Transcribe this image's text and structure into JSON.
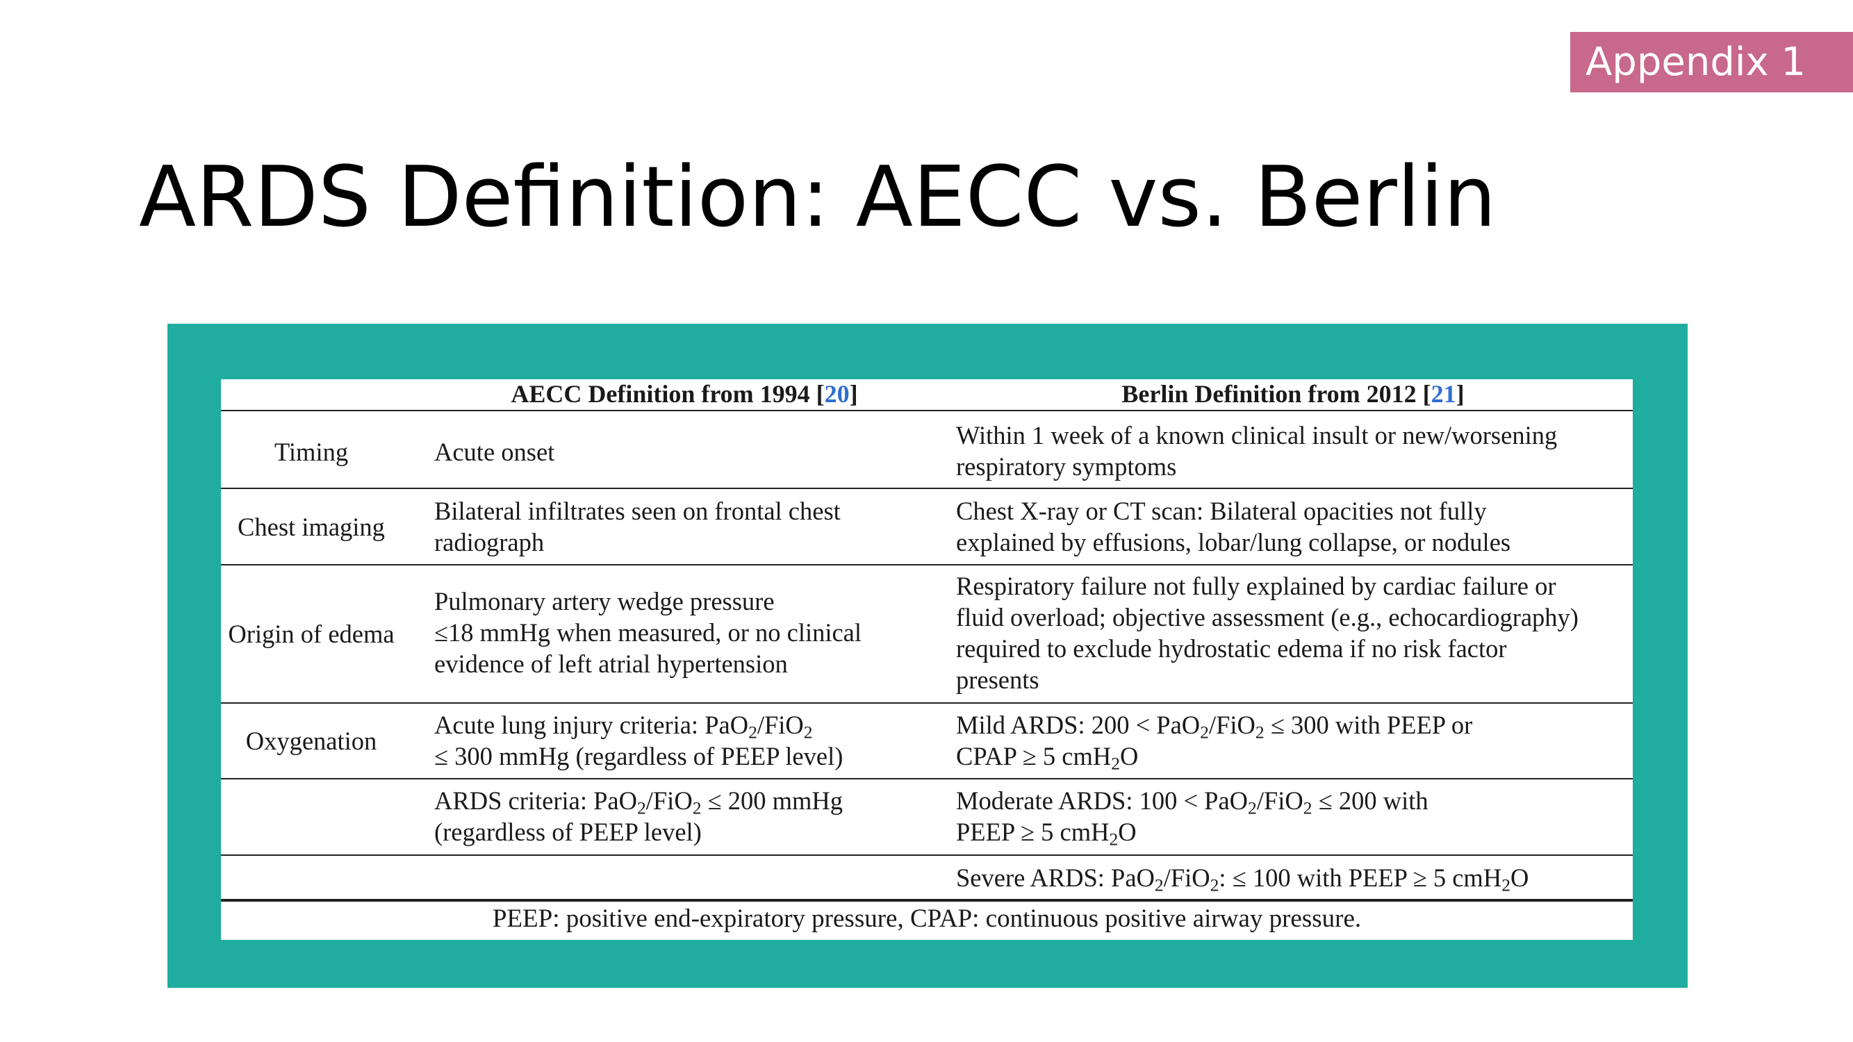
{
  "badge": "Appendix 1",
  "title": "ARDS Definition: AECC vs. Berlin",
  "colors": {
    "badge": "#c8688a",
    "frame": "#20ada0"
  },
  "table": {
    "header": {
      "aecc_text": "AECC Definition from 1994 [",
      "aecc_ref": "20",
      "aecc_close": "]",
      "berlin_text": "Berlin Definition from 2012 [",
      "berlin_ref": "21",
      "berlin_close": "]"
    },
    "rows": {
      "timing": {
        "label": "Timing",
        "aecc": [
          "Acute onset"
        ],
        "berlin": [
          "Within 1 week of a known clinical insult or new/worsening",
          "respiratory symptoms"
        ]
      },
      "imaging": {
        "label": "Chest imaging",
        "aecc": [
          "Bilateral infiltrates seen on frontal chest",
          "radiograph"
        ],
        "berlin": [
          "Chest X-ray or CT scan: Bilateral opacities not fully",
          "explained by effusions, lobar/lung collapse, or nodules"
        ]
      },
      "edema": {
        "label": "Origin of edema",
        "aecc": [
          "Pulmonary artery wedge pressure",
          "≤18 mmHg when measured, or no clinical",
          "evidence of left atrial hypertension"
        ],
        "berlin": [
          "Respiratory failure not fully explained by cardiac failure or",
          "fluid overload; objective assessment (e.g., echocardiography)",
          "required to exclude hydrostatic edema if no risk factor",
          "presents"
        ]
      },
      "oxygenation": {
        "label": "Oxygenation",
        "aecc": [
          "Acute lung injury criteria: PaO",
          "2",
          "/FiO",
          "2",
          "≤ 300 mmHg (regardless of PEEP level)"
        ],
        "berlin": [
          "Mild ARDS: 200 < PaO",
          "2",
          "/FiO",
          "2",
          " ≤ 300 with PEEP or",
          "CPAP ≥ 5 cmH",
          "2",
          "O"
        ]
      },
      "moderate": {
        "aecc": [
          "ARDS criteria: PaO",
          "2",
          "/FiO",
          "2",
          " ≤ 200 mmHg",
          "(regardless of PEEP level)"
        ],
        "berlin": [
          "Moderate ARDS: 100 < PaO",
          "2",
          "/FiO",
          "2",
          " ≤ 200 with",
          "PEEP ≥ 5 cmH",
          "2",
          "O"
        ]
      },
      "severe": {
        "berlin": [
          "Severe ARDS: PaO",
          "2",
          "/FiO",
          "2",
          ": ≤ 100 with PEEP ≥ 5 cmH",
          "2",
          "O"
        ]
      }
    },
    "footnote": "PEEP: positive end-expiratory pressure, CPAP: continuous positive airway pressure."
  }
}
